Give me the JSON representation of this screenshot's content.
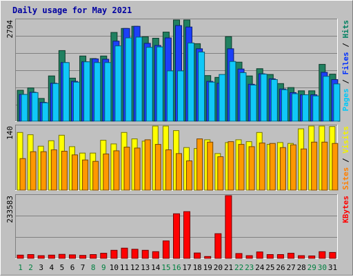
{
  "chart_data": {
    "type": "bar",
    "title": "Daily usage for May 2021",
    "x": [
      "1",
      "2",
      "3",
      "4",
      "5",
      "6",
      "7",
      "8",
      "9",
      "10",
      "11",
      "12",
      "13",
      "14",
      "15",
      "16",
      "17",
      "18",
      "19",
      "20",
      "21",
      "22",
      "23",
      "24",
      "25",
      "26",
      "27",
      "28",
      "29",
      "30",
      "31"
    ],
    "weekend_days": [
      "1",
      "2",
      "8",
      "9",
      "15",
      "16",
      "22",
      "23",
      "29",
      "30"
    ],
    "panels": [
      {
        "id": "top",
        "ymax": 2794,
        "ymax_label": "2794",
        "ylabel_parts": [
          {
            "text": "Pages",
            "color": "#00c8f8"
          },
          {
            "text": " / ",
            "color": "#000000"
          },
          {
            "text": "Files",
            "color": "#0030ff"
          },
          {
            "text": " / ",
            "color": "#000000"
          },
          {
            "text": "Hits",
            "color": "#008060"
          }
        ],
        "series": [
          {
            "name": "Hits",
            "color": "#208060",
            "values": [
              855,
              920,
              630,
              1250,
              1950,
              1190,
              1800,
              1730,
              1800,
              2450,
              2560,
              2620,
              2330,
              2290,
              2460,
              2794,
              2794,
              2140,
              1260,
              1210,
              2334,
              1630,
              1250,
              1450,
              1290,
              1040,
              930,
              840,
              840,
              1570,
              1300
            ]
          },
          {
            "name": "Files",
            "color": "#1c40f8",
            "values": [
              740,
              800,
              520,
              1050,
              1620,
              1100,
              1640,
              1720,
              1710,
              2210,
              2560,
              2620,
              2150,
              2090,
              2300,
              2640,
              2600,
              2000,
              1100,
              1050,
              2000,
              1440,
              1020,
              1310,
              1170,
              890,
              790,
              730,
              730,
              1350,
              1150
            ]
          },
          {
            "name": "Pages",
            "color": "#10c8f8",
            "values": [
              740,
              790,
              510,
              1040,
              1620,
              1080,
              1640,
              1620,
              1620,
              2080,
              2300,
              2320,
              2040,
              2050,
              1390,
              1390,
              2160,
              1910,
              1080,
              1290,
              1650,
              1340,
              1000,
              1300,
              1150,
              870,
              760,
              730,
              700,
              1240,
              1030
            ]
          }
        ]
      },
      {
        "id": "middle",
        "ymax": 140,
        "ymax_label": "140",
        "ylabel_parts": [
          {
            "text": "Sites",
            "color": "#ff8000"
          },
          {
            "text": " / ",
            "color": "#000000"
          },
          {
            "text": "Visits",
            "color": "#f0f000"
          }
        ],
        "series": [
          {
            "name": "Visits",
            "color": "#ffff00",
            "values": [
              126,
              121,
              96,
              108,
              120,
              95,
              81,
              81,
              109,
              101,
              126,
              112,
              107,
              140,
              140,
              130,
              93,
              91,
              110,
              80,
              104,
              110,
              106,
              126,
              100,
              104,
              102,
              134,
              140,
              140,
              139
            ]
          },
          {
            "name": "Sites",
            "color": "#ff9800",
            "values": [
              69,
              84,
              84,
              88,
              85,
              77,
              66,
              63,
              79,
              86,
              94,
              92,
              110,
              100,
              88,
              80,
              64,
              112,
              105,
              73,
              106,
              100,
              95,
              103,
              102,
              93,
              99,
              90,
              105,
              105,
              102
            ]
          }
        ]
      },
      {
        "id": "bottom",
        "ymax": 233583,
        "ymax_label": "233583",
        "ylabel_parts": [
          {
            "text": "KBytes",
            "color": "#ff0000"
          }
        ],
        "series": [
          {
            "name": "KBytes",
            "color": "#ff0000",
            "values": [
              12000,
              14000,
              10000,
              12000,
              15000,
              13000,
              11000,
              14000,
              19000,
              30000,
              38000,
              34000,
              30000,
              25000,
              65000,
              166000,
              174000,
              20000,
              7000,
              92000,
              233583,
              18000,
              10000,
              24000,
              14000,
              14000,
              19000,
              10000,
              9000,
              25000,
              22000
            ]
          }
        ]
      }
    ]
  }
}
